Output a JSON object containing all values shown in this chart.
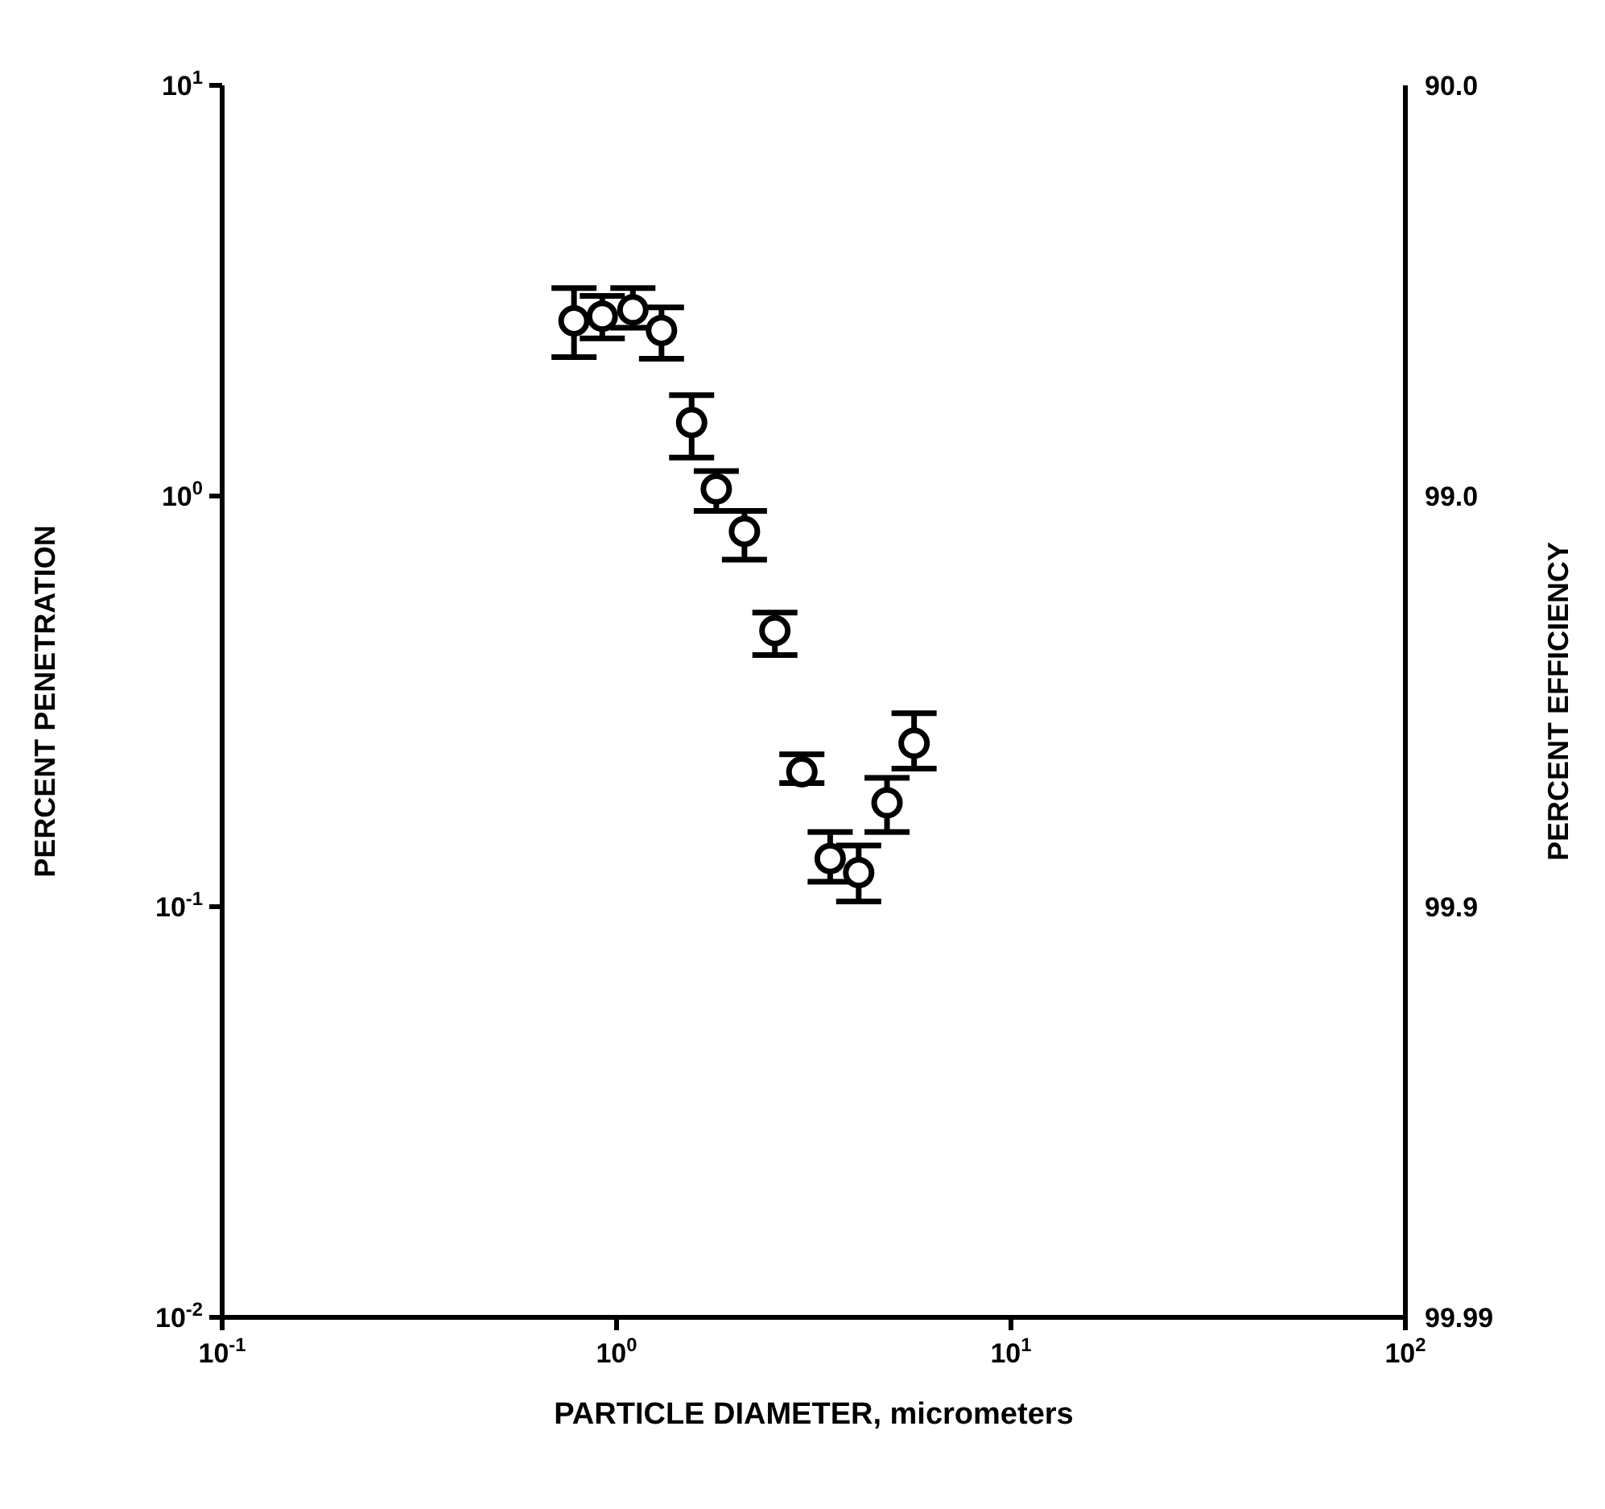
{
  "chart_data": {
    "type": "scatter",
    "xlabel": "PARTICLE DIAMETER, micrometers",
    "ylabel": "PERCENT PENETRATION",
    "y2label": "PERCENT EFFICIENCY",
    "log": "xy",
    "grid": false,
    "legend": false,
    "marker": "circle",
    "xlim": [
      0.1,
      100
    ],
    "xticks": [
      {
        "value": 0.1,
        "label": "10$^{-1}$"
      },
      {
        "value": 1,
        "label": "10$^{0}$"
      },
      {
        "value": 10,
        "label": "10$^{1}$"
      },
      {
        "value": 100,
        "label": "10$^{2}$"
      }
    ],
    "ylim": [
      0.01,
      10
    ],
    "yticks": [
      {
        "value": 0.01,
        "label": "10$^{-2}$"
      },
      {
        "value": 0.1,
        "label": "10$^{-1}$"
      },
      {
        "value": 1,
        "label": "10$^{0}$"
      },
      {
        "value": 10,
        "label": "10$^{1}$"
      }
    ],
    "annotations": [
      "99.99",
      "99.9",
      "99.0",
      "90.0"
    ],
    "series": [
      {
        "color": "#000000",
        "x": [
          0.78,
          0.92,
          1.1,
          1.3,
          1.55,
          1.79,
          2.11,
          2.52,
          2.95,
          3.48,
          4.11,
          4.85,
          5.68
        ],
        "values": [
          2.67,
          2.74,
          2.84,
          2.53,
          1.51,
          1.04,
          0.82,
          0.47,
          0.213,
          0.131,
          0.121,
          0.179,
          0.25
        ],
        "errors": [
          [
            2.18,
            3.21
          ],
          [
            2.42,
            3.07
          ],
          [
            2.57,
            3.21
          ],
          [
            2.16,
            2.88
          ],
          [
            1.24,
            1.76
          ],
          [
            0.92,
            1.15
          ],
          [
            0.7,
            0.92
          ],
          [
            0.41,
            0.52
          ],
          [
            0.2,
            0.235
          ],
          [
            0.115,
            0.152
          ],
          [
            0.103,
            0.141
          ],
          [
            0.152,
            0.206
          ],
          [
            0.217,
            0.296
          ]
        ]
      }
    ]
  }
}
